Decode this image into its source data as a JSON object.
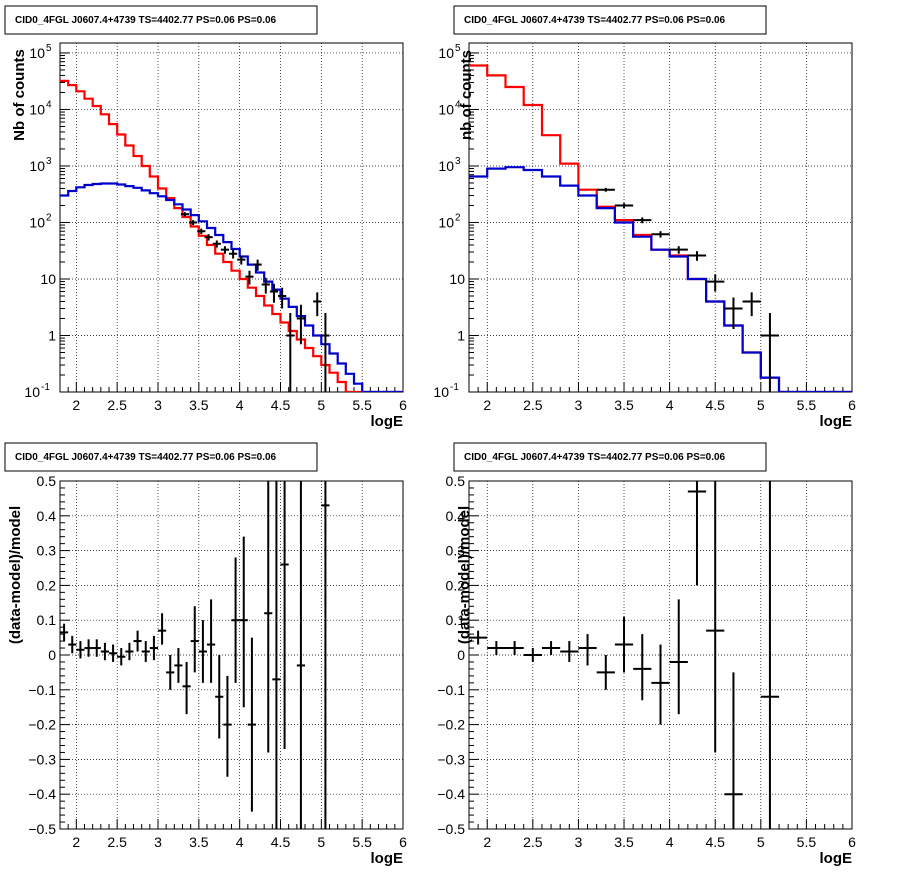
{
  "chart_data": [
    {
      "type": "line",
      "title": "CID0_4FGL J0607.4+4739 TS=4402.77 PS=0.06 PS=0.06",
      "xlabel": "logE",
      "ylabel": "Nb of counts",
      "ylog": true,
      "xlim": [
        1.8,
        6.0
      ],
      "ylim": [
        0.1,
        150000
      ],
      "xticks": [
        "2",
        "2.5",
        "3",
        "3.5",
        "4",
        "4.5",
        "5",
        "5.5",
        "6"
      ],
      "yticks": [
        {
          "v": 0.1,
          "t": "10",
          "sup": "-1"
        },
        {
          "v": 1,
          "t": "1",
          "sup": ""
        },
        {
          "v": 10,
          "t": "10",
          "sup": ""
        },
        {
          "v": 100,
          "t": "10",
          "sup": "2"
        },
        {
          "v": 1000,
          "t": "10",
          "sup": "3"
        },
        {
          "v": 10000,
          "t": "10",
          "sup": "4"
        },
        {
          "v": 100000,
          "t": "10",
          "sup": "5"
        }
      ],
      "grid": true,
      "bin_edges": [
        1.8,
        1.9,
        2.0,
        2.1,
        2.2,
        2.3,
        2.4,
        2.5,
        2.6,
        2.7,
        2.8,
        2.9,
        3.0,
        3.1,
        3.2,
        3.3,
        3.4,
        3.5,
        3.6,
        3.7,
        3.8,
        3.9,
        4.0,
        4.1,
        4.2,
        4.3,
        4.4,
        4.5,
        4.6,
        4.7,
        4.8,
        4.9,
        5.0,
        5.1,
        5.2,
        5.3,
        5.4,
        5.5,
        5.6,
        5.7,
        5.8,
        5.9,
        6.0
      ],
      "series": [
        {
          "color": "#ff0000",
          "values": [
            32000,
            27000,
            21000,
            15500,
            11500,
            8200,
            5500,
            3600,
            2300,
            1500,
            1000,
            650,
            400,
            270,
            180,
            125,
            85,
            58,
            40,
            28,
            20,
            14,
            10,
            7,
            5,
            3.4,
            2.4,
            1.7,
            1.2,
            0.85,
            0.6,
            0.43,
            0.3,
            0.22,
            0.15,
            0.1,
            0.1,
            0.1,
            0.1,
            0.1,
            0.1,
            0.1
          ]
        },
        {
          "color": "#0000cc",
          "values": [
            300,
            360,
            420,
            460,
            480,
            490,
            490,
            470,
            440,
            410,
            370,
            330,
            290,
            250,
            210,
            170,
            135,
            105,
            80,
            60,
            45,
            34,
            25,
            18,
            13,
            9,
            6.5,
            4.5,
            3.2,
            2.2,
            1.5,
            1.0,
            0.7,
            0.48,
            0.32,
            0.21,
            0.14,
            0.1,
            0.1,
            0.1,
            0.1,
            0.1
          ]
        }
      ],
      "points": [
        {
          "x": 3.33,
          "y": 140,
          "xe": 0.05,
          "lo": 128,
          "hi": 152
        },
        {
          "x": 3.43,
          "y": 100,
          "xe": 0.05,
          "lo": 90,
          "hi": 110
        },
        {
          "x": 3.53,
          "y": 70,
          "xe": 0.05,
          "lo": 62,
          "hi": 78
        },
        {
          "x": 3.62,
          "y": 55,
          "xe": 0.05,
          "lo": 48,
          "hi": 62
        },
        {
          "x": 3.72,
          "y": 42,
          "xe": 0.05,
          "lo": 36,
          "hi": 48
        },
        {
          "x": 3.82,
          "y": 33,
          "xe": 0.05,
          "lo": 28,
          "hi": 38
        },
        {
          "x": 3.92,
          "y": 28,
          "xe": 0.05,
          "lo": 23,
          "hi": 33
        },
        {
          "x": 4.02,
          "y": 22,
          "xe": 0.05,
          "lo": 18,
          "hi": 26
        },
        {
          "x": 4.12,
          "y": 11,
          "xe": 0.05,
          "lo": 8,
          "hi": 14
        },
        {
          "x": 4.22,
          "y": 18,
          "xe": 0.05,
          "lo": 14,
          "hi": 22
        },
        {
          "x": 4.32,
          "y": 8,
          "xe": 0.05,
          "lo": 5.5,
          "hi": 10.5
        },
        {
          "x": 4.42,
          "y": 6,
          "xe": 0.05,
          "lo": 3.8,
          "hi": 8.2
        },
        {
          "x": 4.52,
          "y": 5,
          "xe": 0.05,
          "lo": 3,
          "hi": 7
        },
        {
          "x": 4.62,
          "y": 1,
          "xe": 0.05,
          "lo": 0.1,
          "hi": 2.5
        },
        {
          "x": 4.75,
          "y": 2,
          "xe": 0.05,
          "lo": 0.7,
          "hi": 3.5
        },
        {
          "x": 4.95,
          "y": 4,
          "xe": 0.05,
          "lo": 2.2,
          "hi": 5.8
        },
        {
          "x": 5.05,
          "y": 1,
          "xe": 0.05,
          "lo": 0.1,
          "hi": 2.5
        }
      ]
    },
    {
      "type": "line",
      "title": "CID0_4FGL J0607.4+4739 TS=4402.77 PS=0.06 PS=0.06",
      "xlabel": "logE",
      "ylabel": "nb of counts",
      "ylog": true,
      "xlim": [
        1.8,
        6.0
      ],
      "ylim": [
        0.1,
        150000
      ],
      "xticks": [
        "2",
        "2.5",
        "3",
        "3.5",
        "4",
        "4.5",
        "5",
        "5.5",
        "6"
      ],
      "yticks": [
        {
          "v": 0.1,
          "t": "10",
          "sup": "-1"
        },
        {
          "v": 1,
          "t": "1",
          "sup": ""
        },
        {
          "v": 10,
          "t": "10",
          "sup": ""
        },
        {
          "v": 100,
          "t": "10",
          "sup": "2"
        },
        {
          "v": 1000,
          "t": "10",
          "sup": "3"
        },
        {
          "v": 10000,
          "t": "10",
          "sup": "4"
        },
        {
          "v": 100000,
          "t": "10",
          "sup": "5"
        }
      ],
      "grid": true,
      "bin_edges": [
        1.8,
        2.0,
        2.2,
        2.4,
        2.6,
        2.8,
        3.0,
        3.2,
        3.4,
        3.6,
        3.8,
        4.0,
        4.2,
        4.4,
        4.6,
        4.8,
        5.0,
        5.2,
        5.4,
        5.6,
        5.8,
        6.0
      ],
      "series": [
        {
          "color": "#ff0000",
          "values": [
            60000,
            40000,
            25000,
            12000,
            3500,
            1100,
            380,
            190,
            110,
            60,
            33,
            26,
            10,
            4,
            1.5,
            0.5,
            0.18,
            0.1,
            0.1,
            0.1,
            0.1
          ]
        },
        {
          "color": "#0000cc",
          "values": [
            650,
            900,
            950,
            850,
            650,
            450,
            300,
            180,
            100,
            56,
            33,
            25,
            10,
            4,
            1.5,
            0.5,
            0.18,
            0.1,
            0.1,
            0.1,
            0.1
          ]
        }
      ],
      "points": [
        {
          "x": 3.3,
          "y": 380,
          "xe": 0.1,
          "lo": 350,
          "hi": 410
        },
        {
          "x": 3.5,
          "y": 200,
          "xe": 0.1,
          "lo": 180,
          "hi": 220
        },
        {
          "x": 3.7,
          "y": 110,
          "xe": 0.1,
          "lo": 97,
          "hi": 123
        },
        {
          "x": 3.9,
          "y": 62,
          "xe": 0.1,
          "lo": 54,
          "hi": 70
        },
        {
          "x": 4.1,
          "y": 33,
          "xe": 0.1,
          "lo": 28,
          "hi": 38
        },
        {
          "x": 4.3,
          "y": 26,
          "xe": 0.1,
          "lo": 21,
          "hi": 31
        },
        {
          "x": 4.5,
          "y": 9,
          "xe": 0.1,
          "lo": 6,
          "hi": 12
        },
        {
          "x": 4.7,
          "y": 3,
          "xe": 0.1,
          "lo": 1.3,
          "hi": 4.7
        },
        {
          "x": 4.9,
          "y": 4,
          "xe": 0.1,
          "lo": 2.2,
          "hi": 5.8
        },
        {
          "x": 5.1,
          "y": 1,
          "xe": 0.1,
          "lo": 0.1,
          "hi": 2.5
        }
      ]
    },
    {
      "type": "scatter",
      "title": "CID0_4FGL J0607.4+4739 TS=4402.77 PS=0.06 PS=0.06",
      "xlabel": "logE",
      "ylabel": "(data-model)/model",
      "ylog": false,
      "xlim": [
        1.8,
        6.0
      ],
      "ylim": [
        -0.5,
        0.5
      ],
      "xticks": [
        "2",
        "2.5",
        "3",
        "3.5",
        "4",
        "4.5",
        "5",
        "5.5",
        "6"
      ],
      "yticks": [
        {
          "v": -0.5,
          "t": "−0.5"
        },
        {
          "v": -0.4,
          "t": "−0.4"
        },
        {
          "v": -0.3,
          "t": "−0.3"
        },
        {
          "v": -0.2,
          "t": "−0.2"
        },
        {
          "v": -0.1,
          "t": "−0.1"
        },
        {
          "v": 0,
          "t": "0"
        },
        {
          "v": 0.1,
          "t": "0.1"
        },
        {
          "v": 0.2,
          "t": "0.2"
        },
        {
          "v": 0.3,
          "t": "0.3"
        },
        {
          "v": 0.4,
          "t": "0.4"
        },
        {
          "v": 0.5,
          "t": "0.5"
        }
      ],
      "grid": true,
      "points": [
        {
          "x": 1.85,
          "y": 0.065,
          "xe": 0.05,
          "lo": 0.04,
          "hi": 0.09
        },
        {
          "x": 1.95,
          "y": 0.03,
          "xe": 0.05,
          "lo": 0.005,
          "hi": 0.055
        },
        {
          "x": 2.05,
          "y": 0.015,
          "xe": 0.05,
          "lo": -0.01,
          "hi": 0.04
        },
        {
          "x": 2.15,
          "y": 0.02,
          "xe": 0.05,
          "lo": -0.005,
          "hi": 0.045
        },
        {
          "x": 2.25,
          "y": 0.02,
          "xe": 0.05,
          "lo": -0.005,
          "hi": 0.045
        },
        {
          "x": 2.35,
          "y": 0.01,
          "xe": 0.05,
          "lo": -0.015,
          "hi": 0.035
        },
        {
          "x": 2.45,
          "y": 0.005,
          "xe": 0.05,
          "lo": -0.02,
          "hi": 0.03
        },
        {
          "x": 2.55,
          "y": -0.005,
          "xe": 0.05,
          "lo": -0.03,
          "hi": 0.02
        },
        {
          "x": 2.65,
          "y": 0.01,
          "xe": 0.05,
          "lo": -0.015,
          "hi": 0.035
        },
        {
          "x": 2.75,
          "y": 0.04,
          "xe": 0.05,
          "lo": 0.01,
          "hi": 0.07
        },
        {
          "x": 2.85,
          "y": 0.01,
          "xe": 0.05,
          "lo": -0.02,
          "hi": 0.04
        },
        {
          "x": 2.95,
          "y": 0.02,
          "xe": 0.05,
          "lo": -0.015,
          "hi": 0.055
        },
        {
          "x": 3.05,
          "y": 0.07,
          "xe": 0.05,
          "lo": 0.03,
          "hi": 0.12
        },
        {
          "x": 3.15,
          "y": -0.05,
          "xe": 0.05,
          "lo": -0.1,
          "hi": 0.0
        },
        {
          "x": 3.25,
          "y": -0.03,
          "xe": 0.05,
          "lo": -0.08,
          "hi": 0.02
        },
        {
          "x": 3.35,
          "y": -0.09,
          "xe": 0.05,
          "lo": -0.17,
          "hi": -0.02
        },
        {
          "x": 3.45,
          "y": 0.04,
          "xe": 0.05,
          "lo": -0.05,
          "hi": 0.14
        },
        {
          "x": 3.55,
          "y": 0.01,
          "xe": 0.05,
          "lo": -0.08,
          "hi": 0.1
        },
        {
          "x": 3.65,
          "y": 0.03,
          "xe": 0.05,
          "lo": -0.08,
          "hi": 0.16
        },
        {
          "x": 3.75,
          "y": -0.12,
          "xe": 0.05,
          "lo": -0.24,
          "hi": 0.0
        },
        {
          "x": 3.85,
          "y": -0.2,
          "xe": 0.05,
          "lo": -0.35,
          "hi": -0.06
        },
        {
          "x": 3.95,
          "y": 0.1,
          "xe": 0.05,
          "lo": -0.08,
          "hi": 0.28
        },
        {
          "x": 4.05,
          "y": 0.1,
          "xe": 0.05,
          "lo": -0.15,
          "hi": 0.34
        },
        {
          "x": 4.15,
          "y": -0.2,
          "xe": 0.05,
          "lo": -0.45,
          "hi": 0.05
        },
        {
          "x": 4.35,
          "y": 0.12,
          "xe": 0.05,
          "lo": -0.28,
          "hi": 0.5
        },
        {
          "x": 4.45,
          "y": -0.07,
          "xe": 0.05,
          "lo": -0.5,
          "hi": 0.5
        },
        {
          "x": 4.55,
          "y": 0.26,
          "xe": 0.05,
          "lo": -0.27,
          "hi": 0.5
        },
        {
          "x": 4.75,
          "y": -0.03,
          "xe": 0.05,
          "lo": -0.5,
          "hi": 0.5
        },
        {
          "x": 5.05,
          "y": 0.43,
          "xe": 0.05,
          "lo": -0.5,
          "hi": 0.5
        }
      ]
    },
    {
      "type": "scatter",
      "title": "CID0_4FGL J0607.4+4739 TS=4402.77 PS=0.06 PS=0.06",
      "xlabel": "logE",
      "ylabel": "(data-model)/model",
      "ylog": false,
      "xlim": [
        1.8,
        6.0
      ],
      "ylim": [
        -0.5,
        0.5
      ],
      "xticks": [
        "2",
        "2.5",
        "3",
        "3.5",
        "4",
        "4.5",
        "5",
        "5.5",
        "6"
      ],
      "yticks": [
        {
          "v": -0.5,
          "t": "−0.5"
        },
        {
          "v": -0.4,
          "t": "−0.4"
        },
        {
          "v": -0.3,
          "t": "−0.3"
        },
        {
          "v": -0.2,
          "t": "−0.2"
        },
        {
          "v": -0.1,
          "t": "−0.1"
        },
        {
          "v": 0,
          "t": "0"
        },
        {
          "v": 0.1,
          "t": "0.1"
        },
        {
          "v": 0.2,
          "t": "0.2"
        },
        {
          "v": 0.3,
          "t": "0.3"
        },
        {
          "v": 0.4,
          "t": "0.4"
        },
        {
          "v": 0.5,
          "t": "0.5"
        }
      ],
      "grid": true,
      "points": [
        {
          "x": 1.9,
          "y": 0.05,
          "xe": 0.1,
          "lo": 0.03,
          "hi": 0.07
        },
        {
          "x": 2.1,
          "y": 0.02,
          "xe": 0.1,
          "lo": 0.0,
          "hi": 0.04
        },
        {
          "x": 2.3,
          "y": 0.02,
          "xe": 0.1,
          "lo": 0.0,
          "hi": 0.04
        },
        {
          "x": 2.5,
          "y": 0.0,
          "xe": 0.1,
          "lo": -0.02,
          "hi": 0.02
        },
        {
          "x": 2.7,
          "y": 0.02,
          "xe": 0.1,
          "lo": 0.0,
          "hi": 0.04
        },
        {
          "x": 2.9,
          "y": 0.01,
          "xe": 0.1,
          "lo": -0.02,
          "hi": 0.04
        },
        {
          "x": 3.1,
          "y": 0.02,
          "xe": 0.1,
          "lo": -0.03,
          "hi": 0.06
        },
        {
          "x": 3.3,
          "y": -0.05,
          "xe": 0.1,
          "lo": -0.1,
          "hi": 0.0
        },
        {
          "x": 3.5,
          "y": 0.03,
          "xe": 0.1,
          "lo": -0.05,
          "hi": 0.11
        },
        {
          "x": 3.7,
          "y": -0.04,
          "xe": 0.1,
          "lo": -0.13,
          "hi": 0.06
        },
        {
          "x": 3.9,
          "y": -0.08,
          "xe": 0.1,
          "lo": -0.2,
          "hi": 0.03
        },
        {
          "x": 4.1,
          "y": -0.02,
          "xe": 0.1,
          "lo": -0.17,
          "hi": 0.16
        },
        {
          "x": 4.3,
          "y": 0.47,
          "xe": 0.1,
          "lo": 0.2,
          "hi": 0.5
        },
        {
          "x": 4.5,
          "y": 0.07,
          "xe": 0.1,
          "lo": -0.28,
          "hi": 0.5
        },
        {
          "x": 4.7,
          "y": -0.4,
          "xe": 0.1,
          "lo": -0.5,
          "hi": -0.05
        },
        {
          "x": 5.1,
          "y": -0.12,
          "xe": 0.1,
          "lo": -0.5,
          "hi": 0.5
        }
      ]
    }
  ]
}
